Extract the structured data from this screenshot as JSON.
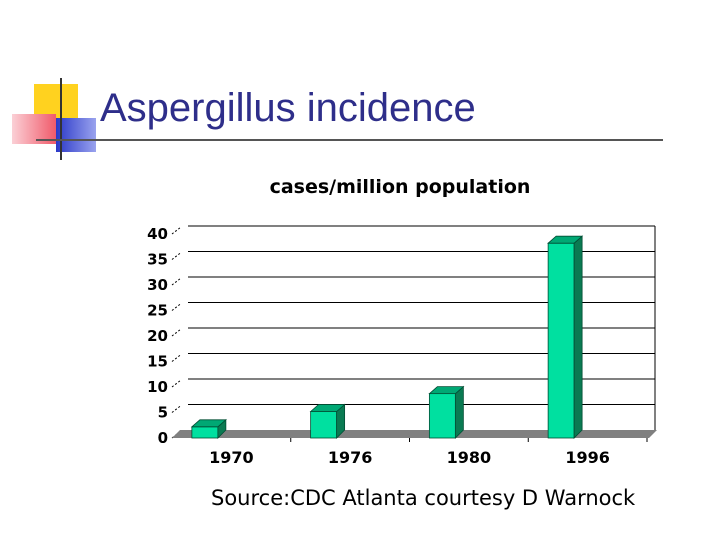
{
  "slide": {
    "title": "Aspergillus incidence",
    "source": "Source:CDC Atlanta courtesy D Warnock"
  },
  "colors": {
    "title": "#2e2e8a",
    "bar_front": "#00e0a0",
    "bar_side": "#0a7a52",
    "bar_top": "#00a874",
    "floor": "#808080",
    "logo_yellow": "#ffd21f",
    "logo_red": "#f05a6a",
    "logo_blue": "#2b39c8"
  },
  "chart_data": {
    "type": "bar",
    "title": "cases/million population",
    "categories": [
      "1970",
      "1976",
      "1980",
      "1996"
    ],
    "values": [
      2,
      5,
      8.5,
      38
    ],
    "ylim": [
      0,
      40
    ],
    "yticks": [
      "0",
      "5",
      "10",
      "15",
      "20",
      "25",
      "30",
      "35",
      "40"
    ],
    "grid": true,
    "xlabel": "",
    "ylabel": ""
  }
}
